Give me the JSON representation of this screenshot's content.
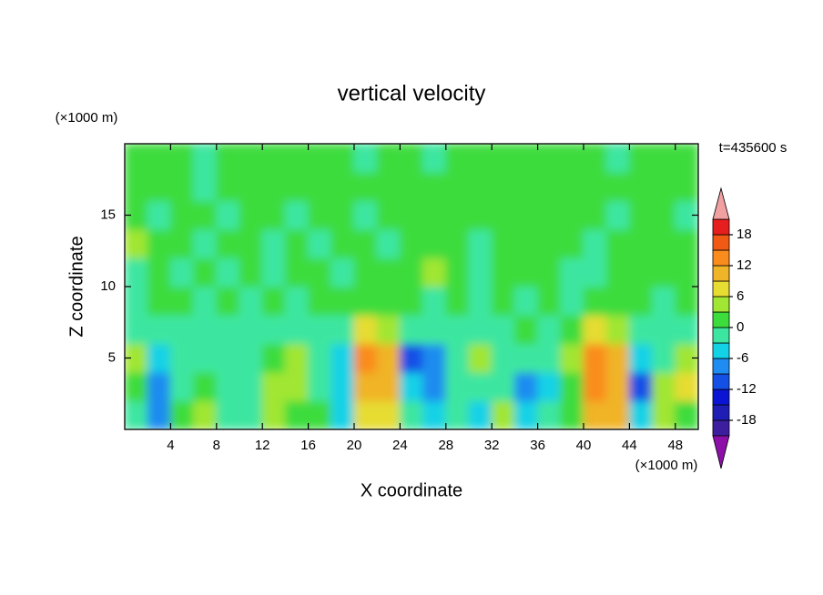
{
  "chart_data": {
    "type": "contour",
    "title": "vertical velocity",
    "xlabel": "X coordinate",
    "ylabel": "Z coordinate",
    "x_unit": "(×1000 m)",
    "y_unit": "(×1000 m)",
    "time_label": "t=435600 s",
    "x": [
      1,
      3,
      5,
      7,
      9,
      11,
      13,
      15,
      17,
      19,
      21,
      23,
      25,
      27,
      29,
      31,
      33,
      35,
      37,
      39,
      41,
      43,
      45,
      47,
      49
    ],
    "z": [
      1,
      3,
      5,
      7,
      9,
      11,
      13,
      15,
      17,
      19
    ],
    "values": [
      [
        -2,
        -9,
        1,
        4,
        -1,
        -3,
        4,
        2,
        1,
        -4,
        7,
        7,
        -3,
        -6,
        -3,
        -4,
        5,
        -4,
        -3,
        1,
        9,
        9,
        -4,
        3,
        1
      ],
      [
        2,
        -9,
        -1,
        1,
        -1,
        -3,
        5,
        3,
        -3,
        -4,
        10,
        10,
        -6,
        -9,
        -2,
        -3,
        -2,
        -7,
        -4,
        2,
        14,
        11,
        -10,
        4,
        6
      ],
      [
        3,
        -6,
        -1,
        -1,
        -2,
        -1,
        1,
        4,
        -2,
        -6,
        12,
        11,
        -11,
        -8,
        -2,
        4,
        -2,
        -2,
        -3,
        3,
        13,
        10,
        -6,
        -2,
        5
      ],
      [
        -1,
        -2,
        -1,
        -2,
        -2,
        -1,
        -1,
        -2,
        -1,
        -2,
        6,
        5,
        -3,
        -2,
        -1,
        -1,
        -2,
        2,
        -1,
        1,
        6,
        4,
        -2,
        -1,
        -1
      ],
      [
        -1,
        1,
        1,
        -1,
        1,
        -1,
        1,
        -1,
        1,
        1,
        2,
        1,
        1,
        -1,
        1,
        -1,
        1,
        -1,
        1,
        -1,
        2,
        1,
        1,
        -1,
        1
      ],
      [
        -1,
        1,
        -1,
        1,
        -1,
        1,
        -1,
        1,
        1,
        -1,
        1,
        1,
        1,
        4,
        1,
        -1,
        1,
        1,
        1,
        -1,
        -1,
        1,
        1,
        1,
        1
      ],
      [
        4,
        1,
        1,
        -1,
        1,
        1,
        -1,
        1,
        -1,
        1,
        1,
        -1,
        1,
        1,
        1,
        -1,
        1,
        1,
        1,
        1,
        -1,
        1,
        1,
        1,
        1
      ],
      [
        1,
        -1,
        1,
        1,
        -1,
        1,
        1,
        -1,
        1,
        1,
        -1,
        1,
        1,
        1,
        1,
        1,
        1,
        1,
        1,
        1,
        1,
        -1,
        1,
        1,
        -1
      ],
      [
        1,
        1,
        1,
        -1,
        1,
        1,
        1,
        1,
        1,
        1,
        1,
        1,
        1,
        1,
        1,
        1,
        1,
        1,
        1,
        1,
        1,
        1,
        1,
        1,
        1
      ],
      [
        1,
        1,
        1,
        -1,
        1,
        1,
        1,
        1,
        1,
        1,
        -1,
        1,
        1,
        -1,
        1,
        1,
        1,
        1,
        1,
        1,
        1,
        -1,
        1,
        1,
        1
      ]
    ],
    "xlim": [
      0,
      50
    ],
    "ylim": [
      0,
      20
    ],
    "xticks": [
      4,
      8,
      12,
      16,
      20,
      24,
      28,
      32,
      36,
      40,
      44,
      48
    ],
    "yticks": [
      5,
      10,
      15
    ],
    "levels": [
      -21,
      -18,
      -15,
      -12,
      -9,
      -6,
      -3,
      0,
      3,
      6,
      9,
      12,
      15,
      18,
      21
    ],
    "colors": [
      "#8c0fa8",
      "#3c1e9f",
      "#1e1eb4",
      "#0a14d2",
      "#1450e6",
      "#1e8cf0",
      "#14d2e6",
      "#3ce6a0",
      "#3cdc3c",
      "#a0e632",
      "#e6dc32",
      "#f0b428",
      "#fa8c1e",
      "#f05a14",
      "#e61e1e",
      "#f0a0a0"
    ],
    "cbar_ticks": [
      -18,
      -12,
      -6,
      0,
      6,
      12,
      18
    ]
  }
}
